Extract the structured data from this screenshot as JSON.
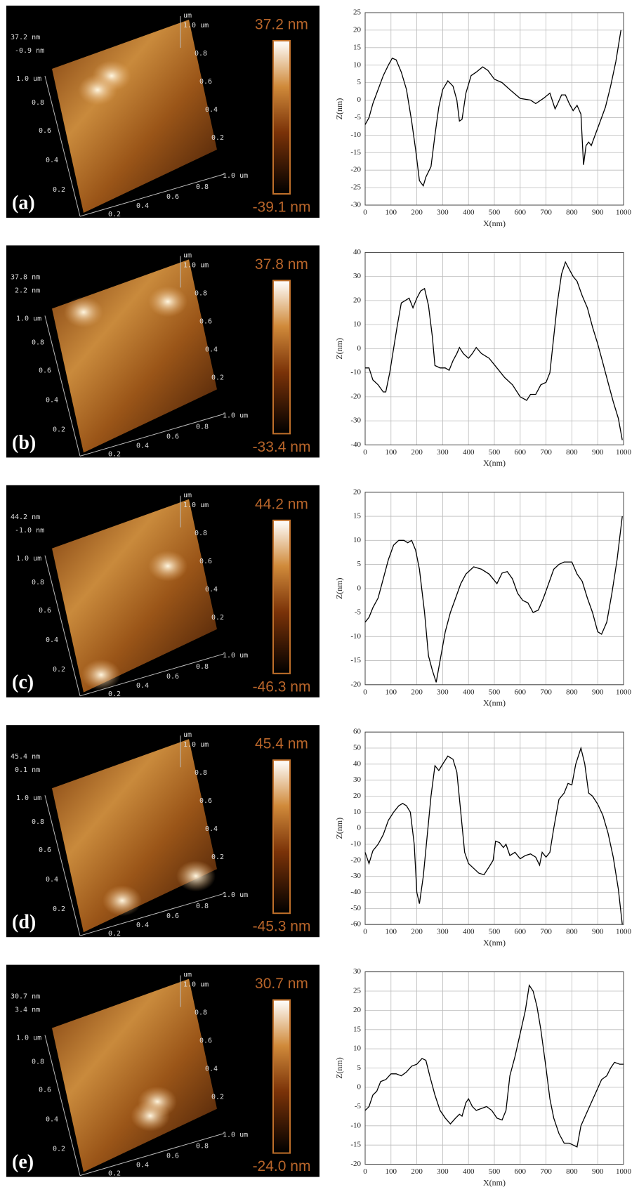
{
  "chart_data": [
    {
      "type": "line",
      "x_label": "X(nm)",
      "y_label": "Z(nm)",
      "color": "#000000",
      "grid": true,
      "xlim": [
        0,
        1000
      ],
      "xticks": [
        0,
        100,
        200,
        300,
        400,
        500,
        600,
        700,
        800,
        900,
        1000
      ],
      "ylim": [
        -30,
        25
      ],
      "yticks": [
        -30,
        -25,
        -20,
        -15,
        -10,
        -5,
        0,
        5,
        10,
        15,
        20,
        25
      ],
      "x": [
        0,
        15,
        30,
        50,
        70,
        90,
        105,
        120,
        140,
        160,
        180,
        195,
        210,
        225,
        235,
        255,
        270,
        285,
        300,
        320,
        340,
        355,
        365,
        375,
        390,
        410,
        430,
        455,
        475,
        500,
        530,
        560,
        600,
        640,
        660,
        690,
        715,
        735,
        745,
        760,
        775,
        790,
        805,
        820,
        835,
        845,
        855,
        865,
        875,
        890,
        910,
        930,
        950,
        970,
        990
      ],
      "values": [
        -7,
        -5,
        -1,
        3,
        7,
        10,
        12,
        11.5,
        8,
        3,
        -6,
        -14,
        -23,
        -24.5,
        -22,
        -19,
        -10,
        -2,
        3,
        5.5,
        4,
        0,
        -6,
        -5.5,
        2,
        7,
        8,
        9.5,
        8.5,
        6,
        5,
        3,
        0.5,
        0,
        -1,
        0.5,
        2,
        -2.5,
        -1,
        1.5,
        1.5,
        -1,
        -3,
        -1.5,
        -4,
        -18.5,
        -13,
        -12,
        -13,
        -10,
        -6,
        -2,
        4,
        11,
        20
      ]
    },
    {
      "type": "line",
      "x_label": "X(nm)",
      "y_label": "Z(nm)",
      "color": "#000000",
      "grid": true,
      "xlim": [
        0,
        1000
      ],
      "xticks": [
        0,
        100,
        200,
        300,
        400,
        500,
        600,
        700,
        800,
        900,
        1000
      ],
      "ylim": [
        -40,
        40
      ],
      "yticks": [
        -40,
        -30,
        -20,
        -10,
        0,
        10,
        20,
        30,
        40
      ],
      "x": [
        0,
        15,
        30,
        50,
        70,
        80,
        95,
        110,
        125,
        140,
        155,
        170,
        185,
        200,
        215,
        230,
        245,
        260,
        270,
        290,
        310,
        325,
        340,
        355,
        365,
        380,
        400,
        415,
        430,
        450,
        480,
        510,
        540,
        570,
        600,
        625,
        640,
        660,
        680,
        700,
        715,
        730,
        745,
        760,
        775,
        790,
        805,
        820,
        840,
        860,
        880,
        900,
        920,
        940,
        960,
        980,
        995
      ],
      "values": [
        -8,
        -8,
        -13,
        -15,
        -18,
        -18,
        -10,
        0,
        10,
        19,
        20,
        21,
        17,
        21,
        24,
        25,
        18,
        5,
        -7,
        -8,
        -8,
        -9,
        -5,
        -2,
        0.5,
        -2,
        -4,
        -2,
        0.5,
        -2,
        -4,
        -8,
        -12,
        -15,
        -20,
        -21.5,
        -19,
        -19,
        -15,
        -14,
        -10,
        5,
        20,
        31,
        36,
        33,
        30,
        28,
        22,
        17,
        9,
        2,
        -6,
        -14,
        -22,
        -29,
        -38
      ]
    },
    {
      "type": "line",
      "x_label": "X(nm)",
      "y_label": "Z(nm)",
      "color": "#000000",
      "grid": true,
      "xlim": [
        0,
        1000
      ],
      "xticks": [
        0,
        100,
        200,
        300,
        400,
        500,
        600,
        700,
        800,
        900,
        1000
      ],
      "ylim": [
        -20,
        20
      ],
      "yticks": [
        -20,
        -15,
        -10,
        -5,
        0,
        5,
        10,
        15,
        20
      ],
      "x": [
        0,
        15,
        30,
        50,
        70,
        90,
        110,
        130,
        150,
        165,
        180,
        195,
        210,
        230,
        245,
        260,
        275,
        290,
        310,
        330,
        350,
        370,
        390,
        420,
        450,
        480,
        510,
        530,
        550,
        570,
        590,
        610,
        630,
        650,
        670,
        690,
        710,
        730,
        750,
        770,
        800,
        820,
        840,
        860,
        880,
        900,
        915,
        935,
        955,
        975,
        995
      ],
      "values": [
        -7,
        -6,
        -4,
        -2,
        2,
        6,
        9,
        10,
        10,
        9.5,
        10,
        8,
        4,
        -5,
        -14,
        -17,
        -19.5,
        -15,
        -9,
        -5,
        -2,
        1,
        3,
        4.5,
        4,
        3,
        1,
        3.2,
        3.5,
        2,
        -1,
        -2.5,
        -3,
        -5,
        -4.5,
        -2,
        1,
        4,
        5,
        5.5,
        5.5,
        3,
        1.5,
        -2,
        -5,
        -9,
        -9.5,
        -7,
        -1,
        6,
        15
      ]
    },
    {
      "type": "line",
      "x_label": "X(nm)",
      "y_label": "Z(nm)",
      "color": "#000000",
      "grid": true,
      "xlim": [
        0,
        1000
      ],
      "xticks": [
        0,
        100,
        200,
        300,
        400,
        500,
        600,
        700,
        800,
        900,
        1000
      ],
      "ylim": [
        -60,
        60
      ],
      "yticks": [
        -60,
        -50,
        -40,
        -30,
        -20,
        -10,
        0,
        10,
        20,
        30,
        40,
        50,
        60
      ],
      "x": [
        0,
        15,
        30,
        50,
        70,
        90,
        110,
        130,
        145,
        160,
        175,
        190,
        200,
        210,
        225,
        240,
        255,
        270,
        285,
        300,
        320,
        340,
        355,
        370,
        385,
        400,
        420,
        440,
        460,
        480,
        495,
        505,
        520,
        535,
        545,
        560,
        580,
        600,
        620,
        640,
        660,
        675,
        685,
        700,
        715,
        730,
        750,
        770,
        785,
        800,
        815,
        835,
        850,
        865,
        880,
        900,
        920,
        940,
        960,
        980,
        995
      ],
      "values": [
        -15,
        -22,
        -14,
        -10,
        -4,
        5,
        10,
        14,
        15.5,
        14,
        10,
        -10,
        -40,
        -47,
        -30,
        -5,
        20,
        39,
        36,
        40,
        45,
        43,
        35,
        10,
        -15,
        -22,
        -25,
        -28,
        -29,
        -24,
        -20,
        -8,
        -9,
        -12,
        -10,
        -17,
        -15,
        -19,
        -17,
        -16,
        -18,
        -23,
        -15,
        -18,
        -15,
        0,
        18,
        22,
        28,
        27,
        40,
        50,
        40,
        22,
        20,
        15,
        8,
        -3,
        -18,
        -38,
        -60
      ]
    },
    {
      "type": "line",
      "x_label": "X(nm)",
      "y_label": "Z(nm)",
      "color": "#000000",
      "grid": true,
      "xlim": [
        0,
        1000
      ],
      "xticks": [
        0,
        100,
        200,
        300,
        400,
        500,
        600,
        700,
        800,
        900,
        1000
      ],
      "ylim": [
        -20,
        30
      ],
      "yticks": [
        -20,
        -15,
        -10,
        -5,
        0,
        5,
        10,
        15,
        20,
        25,
        30
      ],
      "x": [
        0,
        15,
        30,
        45,
        60,
        80,
        100,
        120,
        140,
        160,
        180,
        200,
        220,
        235,
        250,
        270,
        290,
        310,
        330,
        350,
        365,
        375,
        390,
        400,
        415,
        430,
        450,
        470,
        490,
        510,
        530,
        545,
        560,
        580,
        600,
        620,
        635,
        650,
        665,
        680,
        700,
        715,
        730,
        750,
        770,
        790,
        805,
        820,
        835,
        855,
        875,
        895,
        915,
        935,
        950,
        965,
        985,
        1000
      ],
      "values": [
        -6,
        -5,
        -2,
        -1,
        1.5,
        2,
        3.5,
        3.5,
        3,
        4,
        5.5,
        6,
        7.5,
        7,
        3,
        -2,
        -6,
        -8,
        -9.5,
        -8,
        -7,
        -7.5,
        -4,
        -3,
        -5,
        -6,
        -5.5,
        -5,
        -6,
        -8,
        -8.5,
        -6,
        3,
        8,
        14,
        20,
        26.5,
        25,
        21,
        15,
        5,
        -3,
        -8,
        -12,
        -14.5,
        -14.5,
        -15,
        -15.5,
        -10,
        -7,
        -4,
        -1,
        2,
        3,
        5,
        6.5,
        6,
        6
      ]
    }
  ],
  "afm_images": [
    {
      "label": "(a)",
      "z_top": "37.2 nm",
      "z_offset": "-0.9 nm",
      "right_axis": [
        "um",
        "1.0 um",
        "0.8",
        "0.6",
        "0.4",
        "0.2"
      ],
      "left_axis": [
        "1.0 um",
        "0.8",
        "0.6",
        "0.4",
        "0.2"
      ],
      "bottom_axis": [
        "0.2",
        "0.4",
        "0.6",
        "0.8",
        "1.0 um"
      ],
      "scale_max": "37.2 nm",
      "scale_min": "-39.1 nm"
    },
    {
      "label": "(b)",
      "z_top": "37.8 nm",
      "z_offset": "2.2 nm",
      "right_axis": [
        "um",
        "1.0 um",
        "0.8",
        "0.6",
        "0.4",
        "0.2"
      ],
      "left_axis": [
        "1.0 um",
        "0.8",
        "0.6",
        "0.4",
        "0.2"
      ],
      "bottom_axis": [
        "0.2",
        "0.4",
        "0.6",
        "0.8",
        "1.0 um"
      ],
      "scale_max": "37.8 nm",
      "scale_min": "-33.4 nm"
    },
    {
      "label": "(c)",
      "z_top": "44.2 nm",
      "z_offset": "-1.0 nm",
      "right_axis": [
        "um",
        "1.0 um",
        "0.8",
        "0.6",
        "0.4",
        "0.2"
      ],
      "left_axis": [
        "1.0 um",
        "0.8",
        "0.6",
        "0.4",
        "0.2"
      ],
      "bottom_axis": [
        "0.2",
        "0.4",
        "0.6",
        "0.8",
        "1.0 um"
      ],
      "scale_max": "44.2 nm",
      "scale_min": "-46.3 nm"
    },
    {
      "label": "(d)",
      "z_top": "45.4 nm",
      "z_offset": "0.1 nm",
      "right_axis": [
        "um",
        "1.0 um",
        "0.8",
        "0.6",
        "0.4",
        "0.2"
      ],
      "left_axis": [
        "1.0 um",
        "0.8",
        "0.6",
        "0.4",
        "0.2"
      ],
      "bottom_axis": [
        "0.2",
        "0.4",
        "0.6",
        "0.8",
        "1.0 um"
      ],
      "scale_max": "45.4 nm",
      "scale_min": "-45.3 nm"
    },
    {
      "label": "(e)",
      "z_top": "30.7 nm",
      "z_offset": "3.4 nm",
      "right_axis": [
        "um",
        "1.0 um",
        "0.8",
        "0.6",
        "0.4",
        "0.2"
      ],
      "left_axis": [
        "1.0 um",
        "0.8",
        "0.6",
        "0.4",
        "0.2"
      ],
      "bottom_axis": [
        "0.2",
        "0.4",
        "0.6",
        "0.8",
        "1.0 um"
      ],
      "scale_max": "30.7 nm",
      "scale_min": "-24.0 nm"
    }
  ]
}
